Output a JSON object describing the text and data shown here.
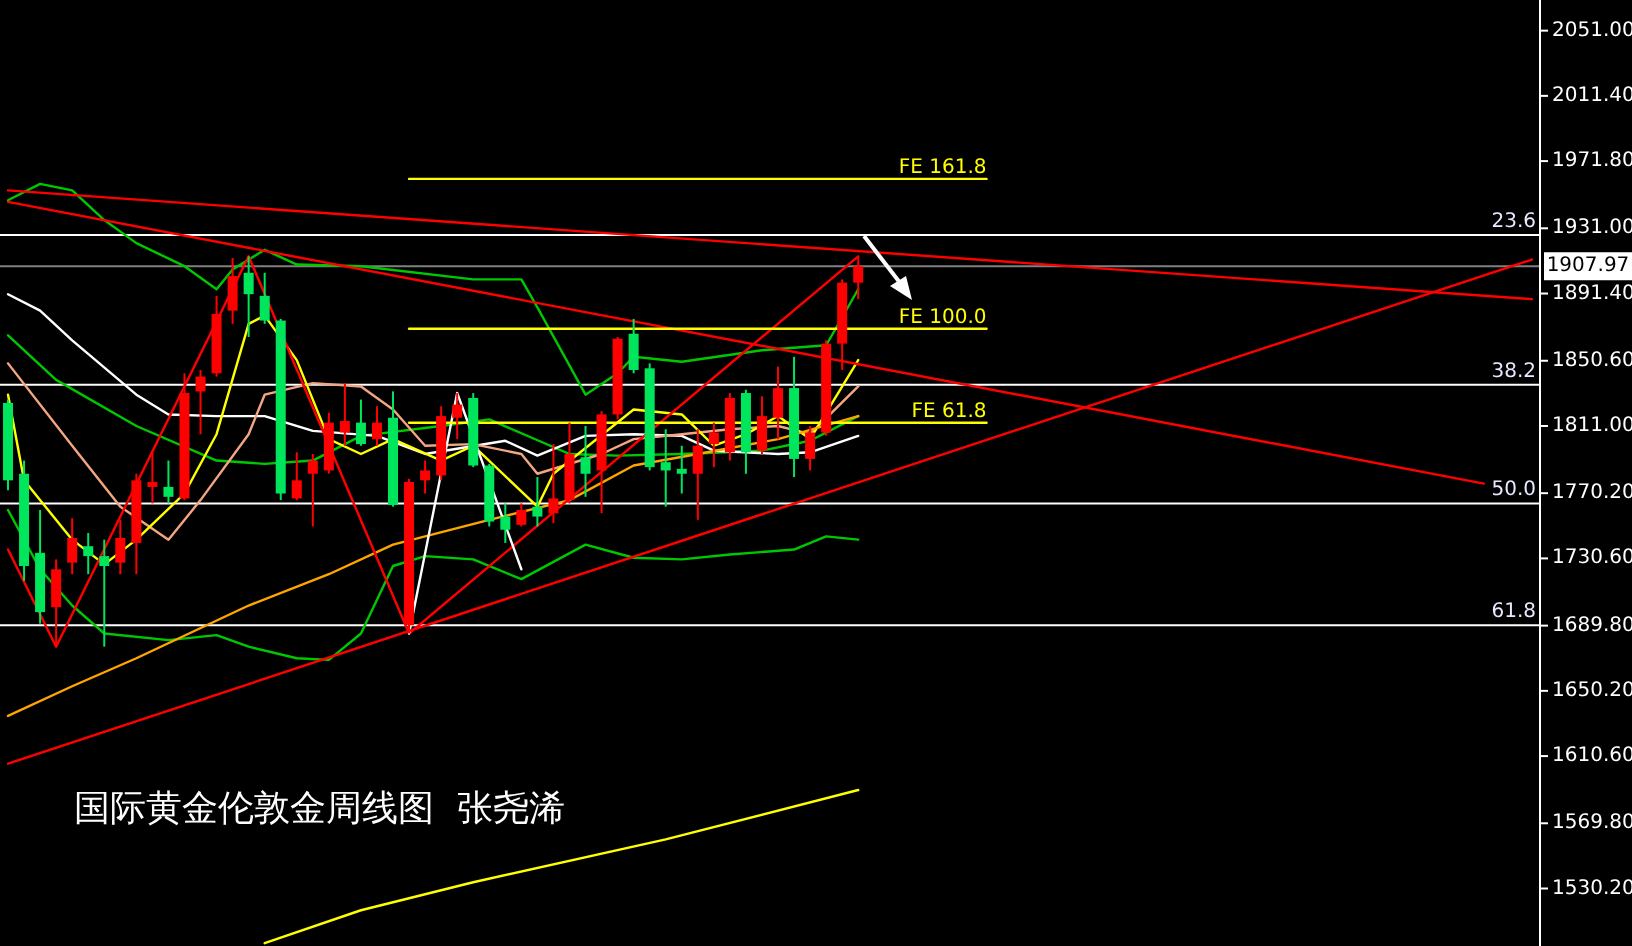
{
  "chart_data": {
    "type": "candlestick",
    "title": "国际黄金伦敦金周线图  张尧浠",
    "categories": [
      null,
      null,
      null,
      null,
      null,
      null,
      null,
      null,
      null,
      null,
      null,
      null,
      null,
      null,
      null,
      null,
      null,
      null,
      null,
      null,
      null,
      null,
      null,
      null,
      null,
      null,
      null,
      null,
      null,
      null,
      null,
      null,
      null,
      null,
      null,
      null,
      null,
      null,
      null,
      null,
      null,
      null,
      null,
      null,
      null,
      null,
      null,
      null,
      null,
      null,
      null,
      null,
      null,
      null,
      null,
      null,
      null,
      null,
      null,
      null,
      null,
      null,
      null,
      null,
      null,
      null,
      null,
      null,
      null,
      null,
      null,
      null,
      null,
      null,
      null,
      null,
      null,
      null,
      null,
      null,
      null,
      null,
      null,
      null,
      null,
      null,
      null,
      null,
      null,
      null,
      null,
      null,
      null,
      null,
      null,
      null
    ],
    "ohlc": [
      [
        1825,
        1827,
        1772,
        1778
      ],
      [
        1782,
        1790,
        1717,
        1726
      ],
      [
        1734,
        1760,
        1691,
        1698
      ],
      [
        1701,
        1730,
        1677,
        1724
      ],
      [
        1728,
        1755,
        1721,
        1743
      ],
      [
        1738,
        1746,
        1721,
        1732
      ],
      [
        1732,
        1742,
        1677,
        1726
      ],
      [
        1728,
        1754,
        1721,
        1743
      ],
      [
        1740,
        1782,
        1721,
        1778
      ],
      [
        1774,
        1796,
        1764,
        1777
      ],
      [
        1774,
        1790,
        1764,
        1768
      ],
      [
        1767,
        1843,
        1766,
        1831
      ],
      [
        1832,
        1845,
        1806,
        1841
      ],
      [
        1843,
        1890,
        1841,
        1879
      ],
      [
        1881,
        1913,
        1873,
        1902
      ],
      [
        1904,
        1914,
        1865,
        1891
      ],
      [
        1890,
        1904,
        1873,
        1875
      ],
      [
        1875,
        1876,
        1766,
        1770
      ],
      [
        1767,
        1795,
        1766,
        1778
      ],
      [
        1782,
        1794,
        1750,
        1790
      ],
      [
        1784,
        1819,
        1782,
        1813
      ],
      [
        1807,
        1837,
        1799,
        1814
      ],
      [
        1813,
        1827,
        1799,
        1800
      ],
      [
        1803,
        1823,
        1799,
        1813
      ],
      [
        1816,
        1832,
        1762,
        1763
      ],
      [
        1690,
        1779,
        1685,
        1777
      ],
      [
        1778,
        1790,
        1770,
        1784
      ],
      [
        1781,
        1823,
        1778,
        1817
      ],
      [
        1816,
        1831,
        1803,
        1824
      ],
      [
        1828,
        1831,
        1786,
        1787
      ],
      [
        1787,
        1788,
        1750,
        1753
      ],
      [
        1756,
        1764,
        1740,
        1748
      ],
      [
        1751,
        1764,
        1750,
        1760
      ],
      [
        1762,
        1780,
        1750,
        1756
      ],
      [
        1758,
        1800,
        1752,
        1767
      ],
      [
        1766,
        1813,
        1764,
        1794
      ],
      [
        1792,
        1811,
        1768,
        1782
      ],
      [
        1784,
        1820,
        1758,
        1818
      ],
      [
        1818,
        1865,
        1815,
        1864
      ],
      [
        1867,
        1876,
        1843,
        1845
      ],
      [
        1846,
        1849,
        1784,
        1786
      ],
      [
        1789,
        1809,
        1762,
        1784
      ],
      [
        1785,
        1799,
        1770,
        1782
      ],
      [
        1782,
        1809,
        1754,
        1799
      ],
      [
        1800,
        1813,
        1786,
        1807
      ],
      [
        1795,
        1831,
        1790,
        1828
      ],
      [
        1831,
        1833,
        1782,
        1795
      ],
      [
        1796,
        1829,
        1794,
        1817
      ],
      [
        1816,
        1847,
        1803,
        1834
      ],
      [
        1834,
        1853,
        1780,
        1791
      ],
      [
        1791,
        1811,
        1784,
        1807
      ],
      [
        1807,
        1863,
        1805,
        1861
      ],
      [
        1861,
        1900,
        1845,
        1898
      ],
      [
        1898,
        1914,
        1888,
        1907.97
      ],
      null,
      null,
      null,
      null,
      null,
      null,
      null,
      null,
      null,
      null,
      null,
      null,
      null,
      null,
      null,
      null,
      null,
      null,
      null,
      null,
      null,
      null,
      null,
      null,
      null,
      null,
      null,
      null,
      null,
      null,
      null,
      null,
      null,
      null,
      null,
      null,
      null,
      null,
      null,
      null,
      null,
      null
    ],
    "colors": [
      "#00e65c",
      "#00e65c",
      "#00e65c",
      "#ff0000",
      "#ff0000",
      "#00e65c",
      "#00e65c",
      "#ff0000",
      "#ff0000",
      "#ff0000",
      "#00e65c",
      "#ff0000",
      "#ff0000",
      "#ff0000",
      "#ff0000",
      "#00e65c",
      "#00e65c",
      "#00e65c",
      "#ff0000",
      "#ff0000",
      "#ff0000",
      "#ff0000",
      "#00e65c",
      "#ff0000",
      "#00e65c",
      "#ff0000",
      "#ff0000",
      "#ff0000",
      "#ff0000",
      "#00e65c",
      "#00e65c",
      "#00e65c",
      "#ff0000",
      "#00e65c",
      "#ff0000",
      "#ff0000",
      "#00e65c",
      "#ff0000",
      "#ff0000",
      "#00e65c",
      "#00e65c",
      "#00e65c",
      "#00e65c",
      "#ff0000",
      "#ff0000",
      "#ff0000",
      "#00e65c",
      "#ff0000",
      "#ff0000",
      "#00e65c",
      "#ff0000",
      "#ff0000",
      "#ff0000",
      "#ff0000",
      null,
      null,
      null,
      null,
      null,
      null,
      null,
      null,
      null,
      null,
      null,
      null,
      null,
      null,
      null,
      null,
      null,
      null,
      null,
      null,
      null,
      null,
      null,
      null,
      null,
      null,
      null,
      null,
      null,
      null,
      null,
      null,
      null,
      null,
      null,
      null,
      null,
      null,
      null,
      null,
      null,
      null
    ],
    "series": [
      {
        "type": "line",
        "color": "#00c800",
        "values": [
          1948,
          null,
          1958,
          null,
          1954,
          null,
          1936,
          null,
          1922,
          null,
          null,
          1908,
          null,
          1894,
          1906,
          null,
          1918,
          null,
          1909,
          null,
          null,
          null,
          1908,
          null,
          null,
          null,
          null,
          null,
          null,
          1900,
          null,
          null,
          1900,
          1883,
          null,
          null,
          1830,
          null,
          1843,
          1853,
          null,
          null,
          1850,
          null,
          null,
          null,
          null,
          1857,
          null,
          null,
          null,
          1860,
          null,
          1894,
          null,
          null,
          null,
          null,
          null,
          null,
          null,
          null,
          null,
          null,
          null,
          null,
          null,
          null,
          null,
          null,
          null,
          null,
          null,
          null,
          null,
          null,
          null,
          null,
          null,
          null,
          null,
          null,
          null,
          null,
          null,
          null,
          null,
          null,
          null,
          null,
          null,
          null,
          null,
          null,
          null,
          null
        ]
      },
      {
        "type": "line",
        "color": "#00c800",
        "values": [
          1866,
          null,
          null,
          1839,
          null,
          null,
          null,
          null,
          1811,
          null,
          null,
          null,
          null,
          1790,
          null,
          null,
          1788,
          null,
          null,
          1790,
          null,
          null,
          1805,
          null,
          null,
          null,
          null,
          1811,
          null,
          null,
          1815,
          null,
          null,
          null,
          null,
          1794,
          null,
          null,
          1793,
          null,
          null,
          null,
          1794,
          null,
          null,
          null,
          null,
          1796,
          null,
          null,
          1802,
          null,
          null,
          1817,
          null,
          null,
          null,
          null,
          null,
          null,
          null,
          null,
          null,
          null,
          null,
          null,
          null,
          null,
          null,
          null,
          null,
          null,
          null,
          null,
          null,
          null,
          null,
          null,
          null,
          null,
          null,
          null,
          null,
          null,
          null,
          null,
          null,
          null,
          null,
          null,
          null,
          null,
          null,
          null,
          null,
          null
        ]
      },
      {
        "type": "line",
        "color": "#00c800",
        "values": [
          1760,
          null,
          1724,
          null,
          1702,
          null,
          1685,
          null,
          null,
          null,
          1681,
          null,
          null,
          1684,
          null,
          1677,
          null,
          null,
          1670,
          null,
          1669,
          null,
          1685,
          null,
          1726,
          null,
          1732,
          null,
          null,
          1730,
          null,
          null,
          1718,
          null,
          null,
          null,
          1739,
          null,
          null,
          1731,
          null,
          null,
          1730,
          null,
          null,
          1733,
          null,
          null,
          null,
          1736,
          null,
          1744,
          null,
          1742,
          null,
          null,
          null,
          null,
          null,
          null,
          null,
          null,
          null,
          null,
          null,
          null,
          null,
          null,
          null,
          null,
          null,
          null,
          null,
          null,
          null,
          null,
          null,
          null,
          null,
          null,
          null,
          null,
          null,
          null,
          null,
          null,
          null,
          null,
          null,
          null,
          null,
          null,
          null,
          null,
          null,
          null
        ]
      },
      {
        "type": "line",
        "color": "#ffffff",
        "values": [
          1891,
          null,
          1881,
          null,
          1863,
          null,
          null,
          null,
          1830,
          null,
          1818,
          null,
          null,
          1817,
          null,
          null,
          1817,
          null,
          null,
          1808,
          null,
          null,
          null,
          1805,
          null,
          null,
          1794,
          null,
          null,
          null,
          null,
          1802,
          null,
          1793,
          null,
          null,
          1805,
          null,
          null,
          1806,
          null,
          null,
          1805,
          null,
          1796,
          null,
          null,
          null,
          1794,
          null,
          1795,
          null,
          null,
          1805,
          null,
          null,
          null,
          null,
          null,
          null,
          null,
          null,
          null,
          null,
          null,
          null,
          null,
          null,
          null,
          null,
          null,
          null,
          null,
          null,
          null,
          null,
          null,
          null,
          null,
          null,
          null,
          null,
          null,
          null,
          null,
          null,
          null,
          null,
          null,
          null,
          null,
          null,
          null,
          null,
          null,
          null
        ]
      },
      {
        "type": "line",
        "color": "#f4a582",
        "values": [
          1849,
          null,
          null,
          null,
          1799,
          null,
          null,
          1762,
          null,
          null,
          1742,
          null,
          1766,
          null,
          null,
          1806,
          1830,
          null,
          null,
          1837,
          null,
          null,
          1835,
          null,
          1821,
          null,
          1799,
          null,
          null,
          1800,
          null,
          null,
          1794,
          1782,
          null,
          null,
          null,
          1794,
          null,
          1803,
          null,
          null,
          1806,
          null,
          null,
          1809,
          null,
          null,
          1811,
          null,
          1806,
          null,
          null,
          1835,
          null,
          null,
          null,
          null,
          null,
          null,
          null,
          null,
          null,
          null,
          null,
          null,
          null,
          null,
          null,
          null,
          null,
          null,
          null,
          null,
          null,
          null,
          null,
          null,
          null,
          null,
          null,
          null,
          null,
          null,
          null,
          null,
          null,
          null,
          null,
          null,
          null,
          null,
          null,
          null,
          null,
          null
        ]
      },
      {
        "type": "line",
        "color": "#ffff00",
        "values": [
          1830,
          1778,
          null,
          null,
          1742,
          null,
          1727,
          null,
          1742,
          null,
          null,
          1770,
          null,
          1806,
          null,
          1873,
          1878,
          null,
          1851,
          null,
          1803,
          null,
          1794,
          null,
          1803,
          null,
          null,
          1790,
          null,
          1799,
          null,
          null,
          null,
          1762,
          1782,
          null,
          null,
          null,
          null,
          1821,
          null,
          null,
          1818,
          null,
          1799,
          null,
          1806,
          null,
          1817,
          null,
          1803,
          null,
          null,
          1851,
          null,
          null,
          null,
          null,
          null,
          null,
          null,
          null,
          null,
          null,
          null,
          null,
          null,
          null,
          null,
          null,
          null,
          null,
          null,
          null,
          null,
          null,
          null,
          null,
          null,
          null,
          null,
          null,
          null,
          null,
          null,
          null,
          null,
          null,
          null,
          null,
          null,
          null,
          null,
          null,
          null,
          null
        ]
      },
      {
        "type": "line",
        "color": "#ffa500",
        "values": [
          1635,
          null,
          null,
          null,
          1653,
          null,
          null,
          null,
          1670,
          null,
          null,
          null,
          null,
          null,
          null,
          1702,
          null,
          null,
          null,
          null,
          1721,
          null,
          null,
          null,
          1739,
          null,
          null,
          null,
          null,
          null,
          1754,
          null,
          null,
          null,
          null,
          1766,
          null,
          null,
          null,
          1787,
          null,
          null,
          null,
          1794,
          null,
          null,
          null,
          null,
          1803,
          null,
          null,
          null,
          null,
          1817,
          null,
          null,
          null,
          null,
          null,
          null,
          null,
          null,
          null,
          null,
          null,
          null,
          null,
          null,
          null,
          null,
          null,
          null,
          null,
          null,
          null,
          null,
          null,
          null,
          null,
          null,
          null,
          null,
          null,
          null,
          null,
          null,
          null,
          null,
          null,
          null,
          null,
          null,
          null,
          null,
          null,
          null
        ]
      },
      {
        "type": "line",
        "color": "#ffff00",
        "values": [
          null,
          null,
          null,
          null,
          null,
          null,
          null,
          null,
          null,
          null,
          null,
          null,
          null,
          null,
          null,
          null,
          1497,
          null,
          null,
          null,
          null,
          null,
          1517,
          null,
          null,
          null,
          null,
          null,
          null,
          1534,
          null,
          null,
          null,
          null,
          null,
          null,
          null,
          null,
          null,
          null,
          null,
          1560,
          null,
          null,
          null,
          null,
          null,
          null,
          null,
          null,
          null,
          null,
          null,
          1590,
          null,
          null,
          null,
          null,
          null,
          null,
          null,
          null,
          null,
          null,
          null,
          null,
          null,
          null,
          null,
          null,
          null,
          null,
          null,
          null,
          null,
          null,
          null,
          null,
          null,
          null,
          null,
          null,
          null,
          null,
          null,
          null,
          null,
          null,
          null,
          null,
          null,
          null,
          null,
          null,
          null,
          null
        ]
      },
      {
        "type": "line",
        "color": "#ff0000",
        "values": [
          1736,
          null,
          null,
          1677,
          null,
          null,
          null,
          null,
          null,
          null,
          null,
          null,
          null,
          null,
          null,
          1914,
          null,
          null,
          null,
          null,
          null,
          null,
          null,
          null,
          null,
          1685,
          null,
          null,
          null,
          null,
          null,
          null,
          null,
          null,
          null,
          null,
          null,
          null,
          null,
          null,
          null,
          null,
          null,
          null,
          null,
          null,
          null,
          null,
          null,
          null,
          null,
          null,
          null,
          1914,
          null,
          null,
          null,
          null,
          null,
          null,
          null,
          null,
          null,
          null,
          null,
          null,
          null,
          null,
          null,
          null,
          null,
          null,
          null,
          null,
          null,
          null,
          null,
          null,
          null,
          null,
          null,
          null,
          null,
          null,
          null,
          null,
          null,
          null,
          null,
          null,
          null,
          null,
          null,
          null,
          null,
          null
        ]
      },
      {
        "type": "line",
        "color": "#ffffff",
        "values": [
          null,
          null,
          null,
          null,
          null,
          null,
          null,
          null,
          null,
          null,
          null,
          null,
          null,
          null,
          null,
          null,
          null,
          null,
          null,
          null,
          null,
          null,
          null,
          null,
          null,
          1685,
          null,
          null,
          1831,
          null,
          null,
          null,
          1724,
          null,
          null,
          null,
          null,
          null,
          null,
          null,
          null,
          null,
          null,
          null,
          null,
          null,
          null,
          null,
          null,
          null,
          null,
          null,
          null,
          null,
          null,
          null,
          null,
          null,
          null,
          null,
          null,
          null,
          null,
          null,
          null,
          null,
          null,
          null,
          null,
          null,
          null,
          null,
          null,
          null,
          null,
          null,
          null,
          null,
          null,
          null,
          null,
          null,
          null,
          null,
          null,
          null,
          null,
          null,
          null,
          null,
          null,
          null,
          null,
          null,
          null,
          null
        ]
      },
      {
        "type": "line",
        "color": "#ff0000",
        "values": [
          1954,
          null,
          null,
          null,
          null,
          null,
          null,
          null,
          null,
          null,
          null,
          null,
          null,
          null,
          null,
          null,
          null,
          null,
          null,
          null,
          null,
          null,
          null,
          null,
          null,
          null,
          null,
          null,
          null,
          null,
          null,
          null,
          null,
          null,
          null,
          null,
          null,
          null,
          null,
          null,
          null,
          null,
          null,
          null,
          null,
          null,
          null,
          null,
          null,
          null,
          null,
          null,
          null,
          null,
          null,
          null,
          null,
          null,
          null,
          null,
          null,
          null,
          null,
          null,
          null,
          null,
          null,
          null,
          null,
          null,
          null,
          null,
          null,
          null,
          null,
          null,
          null,
          null,
          null,
          null,
          null,
          null,
          null,
          null,
          null,
          null,
          null,
          null,
          null,
          null,
          null,
          null,
          null,
          null,
          null,
          1888
        ]
      },
      {
        "type": "line",
        "color": "#ff0000",
        "values": [
          1947,
          null,
          null,
          null,
          null,
          null,
          null,
          null,
          null,
          null,
          null,
          null,
          null,
          null,
          null,
          null,
          null,
          null,
          null,
          null,
          null,
          null,
          null,
          null,
          null,
          null,
          null,
          null,
          null,
          null,
          null,
          null,
          null,
          null,
          null,
          null,
          null,
          null,
          null,
          null,
          null,
          null,
          null,
          null,
          null,
          null,
          null,
          null,
          null,
          null,
          null,
          null,
          null,
          null,
          null,
          null,
          null,
          null,
          null,
          null,
          null,
          null,
          null,
          null,
          null,
          null,
          null,
          null,
          null,
          null,
          null,
          null,
          null,
          null,
          null,
          null,
          null,
          null,
          null,
          null,
          null,
          null,
          null,
          null,
          null,
          null,
          null,
          null,
          null,
          null,
          null,
          null,
          1776,
          null,
          null,
          null
        ]
      },
      {
        "type": "line",
        "color": "#ff0000",
        "values": [
          1606,
          null,
          null,
          null,
          null,
          null,
          null,
          null,
          null,
          null,
          null,
          null,
          null,
          null,
          null,
          null,
          null,
          null,
          null,
          null,
          null,
          null,
          null,
          null,
          null,
          null,
          null,
          null,
          null,
          null,
          null,
          null,
          null,
          null,
          null,
          null,
          null,
          null,
          null,
          null,
          null,
          null,
          null,
          null,
          null,
          null,
          null,
          null,
          null,
          null,
          null,
          null,
          null,
          null,
          null,
          null,
          null,
          null,
          null,
          null,
          null,
          null,
          null,
          null,
          null,
          null,
          null,
          null,
          null,
          null,
          null,
          null,
          null,
          null,
          null,
          null,
          null,
          null,
          null,
          null,
          null,
          null,
          null,
          null,
          null,
          null,
          null,
          null,
          null,
          null,
          null,
          null,
          null,
          null,
          null,
          1912
        ]
      },
      {
        "type": "line",
        "name": "FE 161.8",
        "color": "#ffff00",
        "values": [
          null,
          null,
          null,
          null,
          null,
          null,
          null,
          null,
          null,
          null,
          null,
          null,
          null,
          null,
          null,
          null,
          null,
          null,
          null,
          null,
          null,
          null,
          null,
          null,
          null,
          1961,
          null,
          null,
          null,
          null,
          null,
          null,
          null,
          null,
          null,
          null,
          null,
          null,
          null,
          null,
          null,
          null,
          null,
          null,
          null,
          null,
          null,
          null,
          null,
          null,
          null,
          null,
          null,
          null,
          null,
          null,
          null,
          null,
          null,
          null,
          null,
          1961,
          null,
          null,
          null,
          null,
          null,
          null,
          null,
          null,
          null,
          null,
          null,
          null,
          null,
          null,
          null,
          null,
          null,
          null,
          null,
          null,
          null,
          null,
          null,
          null,
          null,
          null,
          null,
          null,
          null,
          null,
          null,
          null,
          null,
          null
        ]
      },
      {
        "type": "line",
        "name": "FE 100.0",
        "color": "#ffff00",
        "values": [
          null,
          null,
          null,
          null,
          null,
          null,
          null,
          null,
          null,
          null,
          null,
          null,
          null,
          null,
          null,
          null,
          null,
          null,
          null,
          null,
          null,
          null,
          null,
          null,
          null,
          1870,
          null,
          null,
          null,
          null,
          null,
          null,
          null,
          null,
          null,
          null,
          null,
          null,
          null,
          null,
          null,
          null,
          null,
          null,
          null,
          null,
          null,
          null,
          null,
          null,
          null,
          null,
          null,
          null,
          null,
          null,
          null,
          null,
          null,
          null,
          null,
          1870,
          null,
          null,
          null,
          null,
          null,
          null,
          null,
          null,
          null,
          null,
          null,
          null,
          null,
          null,
          null,
          null,
          null,
          null,
          null,
          null,
          null,
          null,
          null,
          null,
          null,
          null,
          null,
          null,
          null,
          null,
          null,
          null,
          null,
          null
        ]
      },
      {
        "type": "line",
        "name": "FE 61.8",
        "color": "#ffff00",
        "values": [
          null,
          null,
          null,
          null,
          null,
          null,
          null,
          null,
          null,
          null,
          null,
          null,
          null,
          null,
          null,
          null,
          null,
          null,
          null,
          null,
          null,
          null,
          null,
          null,
          null,
          1813,
          null,
          null,
          null,
          null,
          null,
          null,
          null,
          null,
          null,
          null,
          null,
          null,
          null,
          null,
          null,
          null,
          null,
          null,
          null,
          null,
          null,
          null,
          null,
          null,
          null,
          null,
          null,
          null,
          null,
          null,
          null,
          null,
          null,
          null,
          null,
          1813,
          null,
          null,
          null,
          null,
          null,
          null,
          null,
          null,
          null,
          null,
          null,
          null,
          null,
          null,
          null,
          null,
          null,
          null,
          null,
          null,
          null,
          null,
          null,
          null,
          null,
          null,
          null,
          null,
          null,
          null,
          null,
          null,
          null,
          null
        ]
      }
    ],
    "ylim": [
      1495.3,
      2069.6
    ],
    "yticks": [
      {
        "value": 2051,
        "label": "2051.00"
      },
      {
        "value": 2011.4,
        "label": "2011.40"
      },
      {
        "value": 1971.8,
        "label": "1971.80"
      },
      {
        "value": 1931,
        "label": "1931.00"
      },
      {
        "value": 1891.4,
        "label": "1891.40"
      },
      {
        "value": 1850.6,
        "label": "1850.60"
      },
      {
        "value": 1811,
        "label": "1811.00"
      },
      {
        "value": 1770.2,
        "label": "1770.20"
      },
      {
        "value": 1730.6,
        "label": "1730.60"
      },
      {
        "value": 1689.8,
        "label": "1689.80"
      },
      {
        "value": 1650.2,
        "label": "1650.20"
      },
      {
        "value": 1610.6,
        "label": "1610.60"
      },
      {
        "value": 1569.8,
        "label": "1569.80"
      },
      {
        "value": 1530.2,
        "label": "1530.20"
      }
    ],
    "tick_labels": "y",
    "ref_lines": [
      {
        "axis": "y",
        "value": 1927,
        "color": "#ffffff"
      },
      {
        "axis": "y",
        "value": 1836,
        "color": "#ffffff"
      },
      {
        "axis": "y",
        "value": 1764,
        "color": "#ffffff"
      },
      {
        "axis": "y",
        "value": 1690,
        "color": "#ffffff"
      },
      {
        "axis": "y",
        "value": 1907.97,
        "label": "1907.97",
        "color": "#808080"
      }
    ],
    "annotations": [
      {
        "text": "23.6",
        "y": 1927
      },
      {
        "text": "38.2",
        "y": 1836
      },
      {
        "text": "50.0",
        "y": 1764
      },
      {
        "text": "61.8",
        "y": 1690
      }
    ]
  }
}
